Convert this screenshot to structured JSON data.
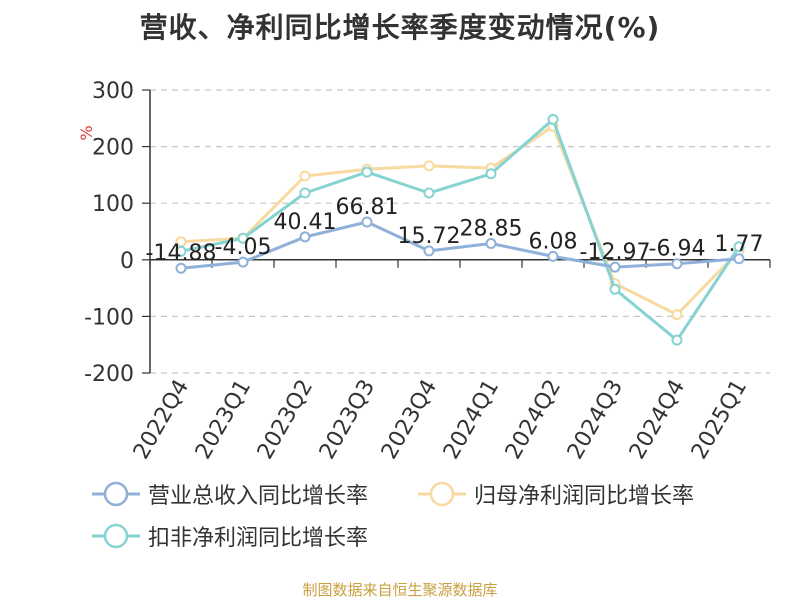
{
  "title": "营收、净利同比增长率季度变动情况(%)",
  "source_note": "制图数据来自恒生聚源数据库",
  "colors": {
    "revenue": "#8fb0d8",
    "parent_profit": "#f8d9a0",
    "deducted_profit": "#86d3d3"
  },
  "chart_data": {
    "type": "line",
    "title": "营收、净利同比增长率季度变动情况(%)",
    "ylabel": "%",
    "xlabel": "",
    "ylim": [
      -200,
      300
    ],
    "yticks": [
      -200,
      -100,
      0,
      100,
      200,
      300
    ],
    "grid": true,
    "legend_position": "bottom",
    "categories": [
      "2022Q4",
      "2023Q1",
      "2023Q2",
      "2023Q3",
      "2023Q4",
      "2024Q1",
      "2024Q2",
      "2024Q3",
      "2024Q4",
      "2025Q1"
    ],
    "series": [
      {
        "name": "营业总收入同比增长率",
        "values": [
          -14.88,
          -4.05,
          40.41,
          66.81,
          15.72,
          28.85,
          6.08,
          -12.97,
          -6.94,
          1.77
        ],
        "data_labels": [
          "-14.88",
          "-4.05",
          "40.41",
          "66.81",
          "15.72",
          "28.85",
          "6.08",
          "-12.97",
          "-6.94",
          "1.77"
        ]
      },
      {
        "name": "归母净利润同比增长率",
        "values": [
          32,
          38,
          148,
          160,
          166,
          162,
          236,
          -42,
          -97,
          16
        ]
      },
      {
        "name": "扣非净利润同比增长率",
        "values": [
          15,
          38,
          118,
          155,
          118,
          152,
          248,
          -52,
          -142,
          23
        ]
      }
    ]
  }
}
